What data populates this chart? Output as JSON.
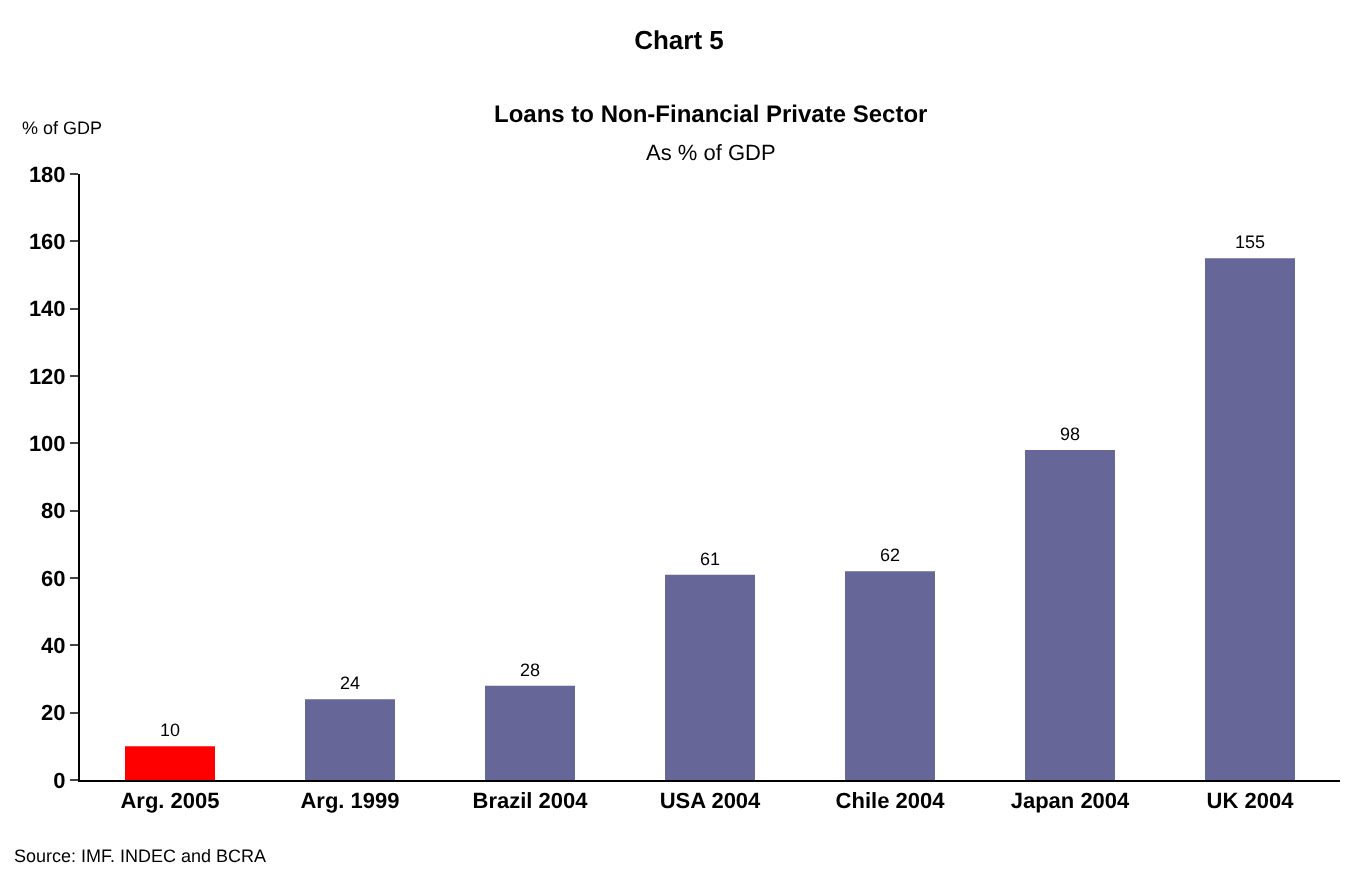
{
  "chart_data": {
    "type": "bar",
    "title": "Chart 5",
    "subtitle": "Loans to Non-Financial Private Sector",
    "ylabel": "% of GDP",
    "annotations": [
      "As % of GDP",
      "Source: IMF. INDEC and BCRA"
    ],
    "categories": [
      "Arg. 2005",
      "Arg. 1999",
      "Brazil 2004",
      "USA 2004",
      "Chile 2004",
      "Japan 2004",
      "UK 2004"
    ],
    "values": [
      10,
      24,
      28,
      61,
      62,
      98,
      155
    ],
    "colors": [
      "#ff0000",
      "#666699",
      "#666699",
      "#666699",
      "#666699",
      "#666699",
      "#666699"
    ],
    "ylim": [
      0,
      180
    ],
    "yticks": [
      0,
      20,
      40,
      60,
      80,
      100,
      120,
      140,
      160,
      180
    ],
    "data_labels": true
  }
}
